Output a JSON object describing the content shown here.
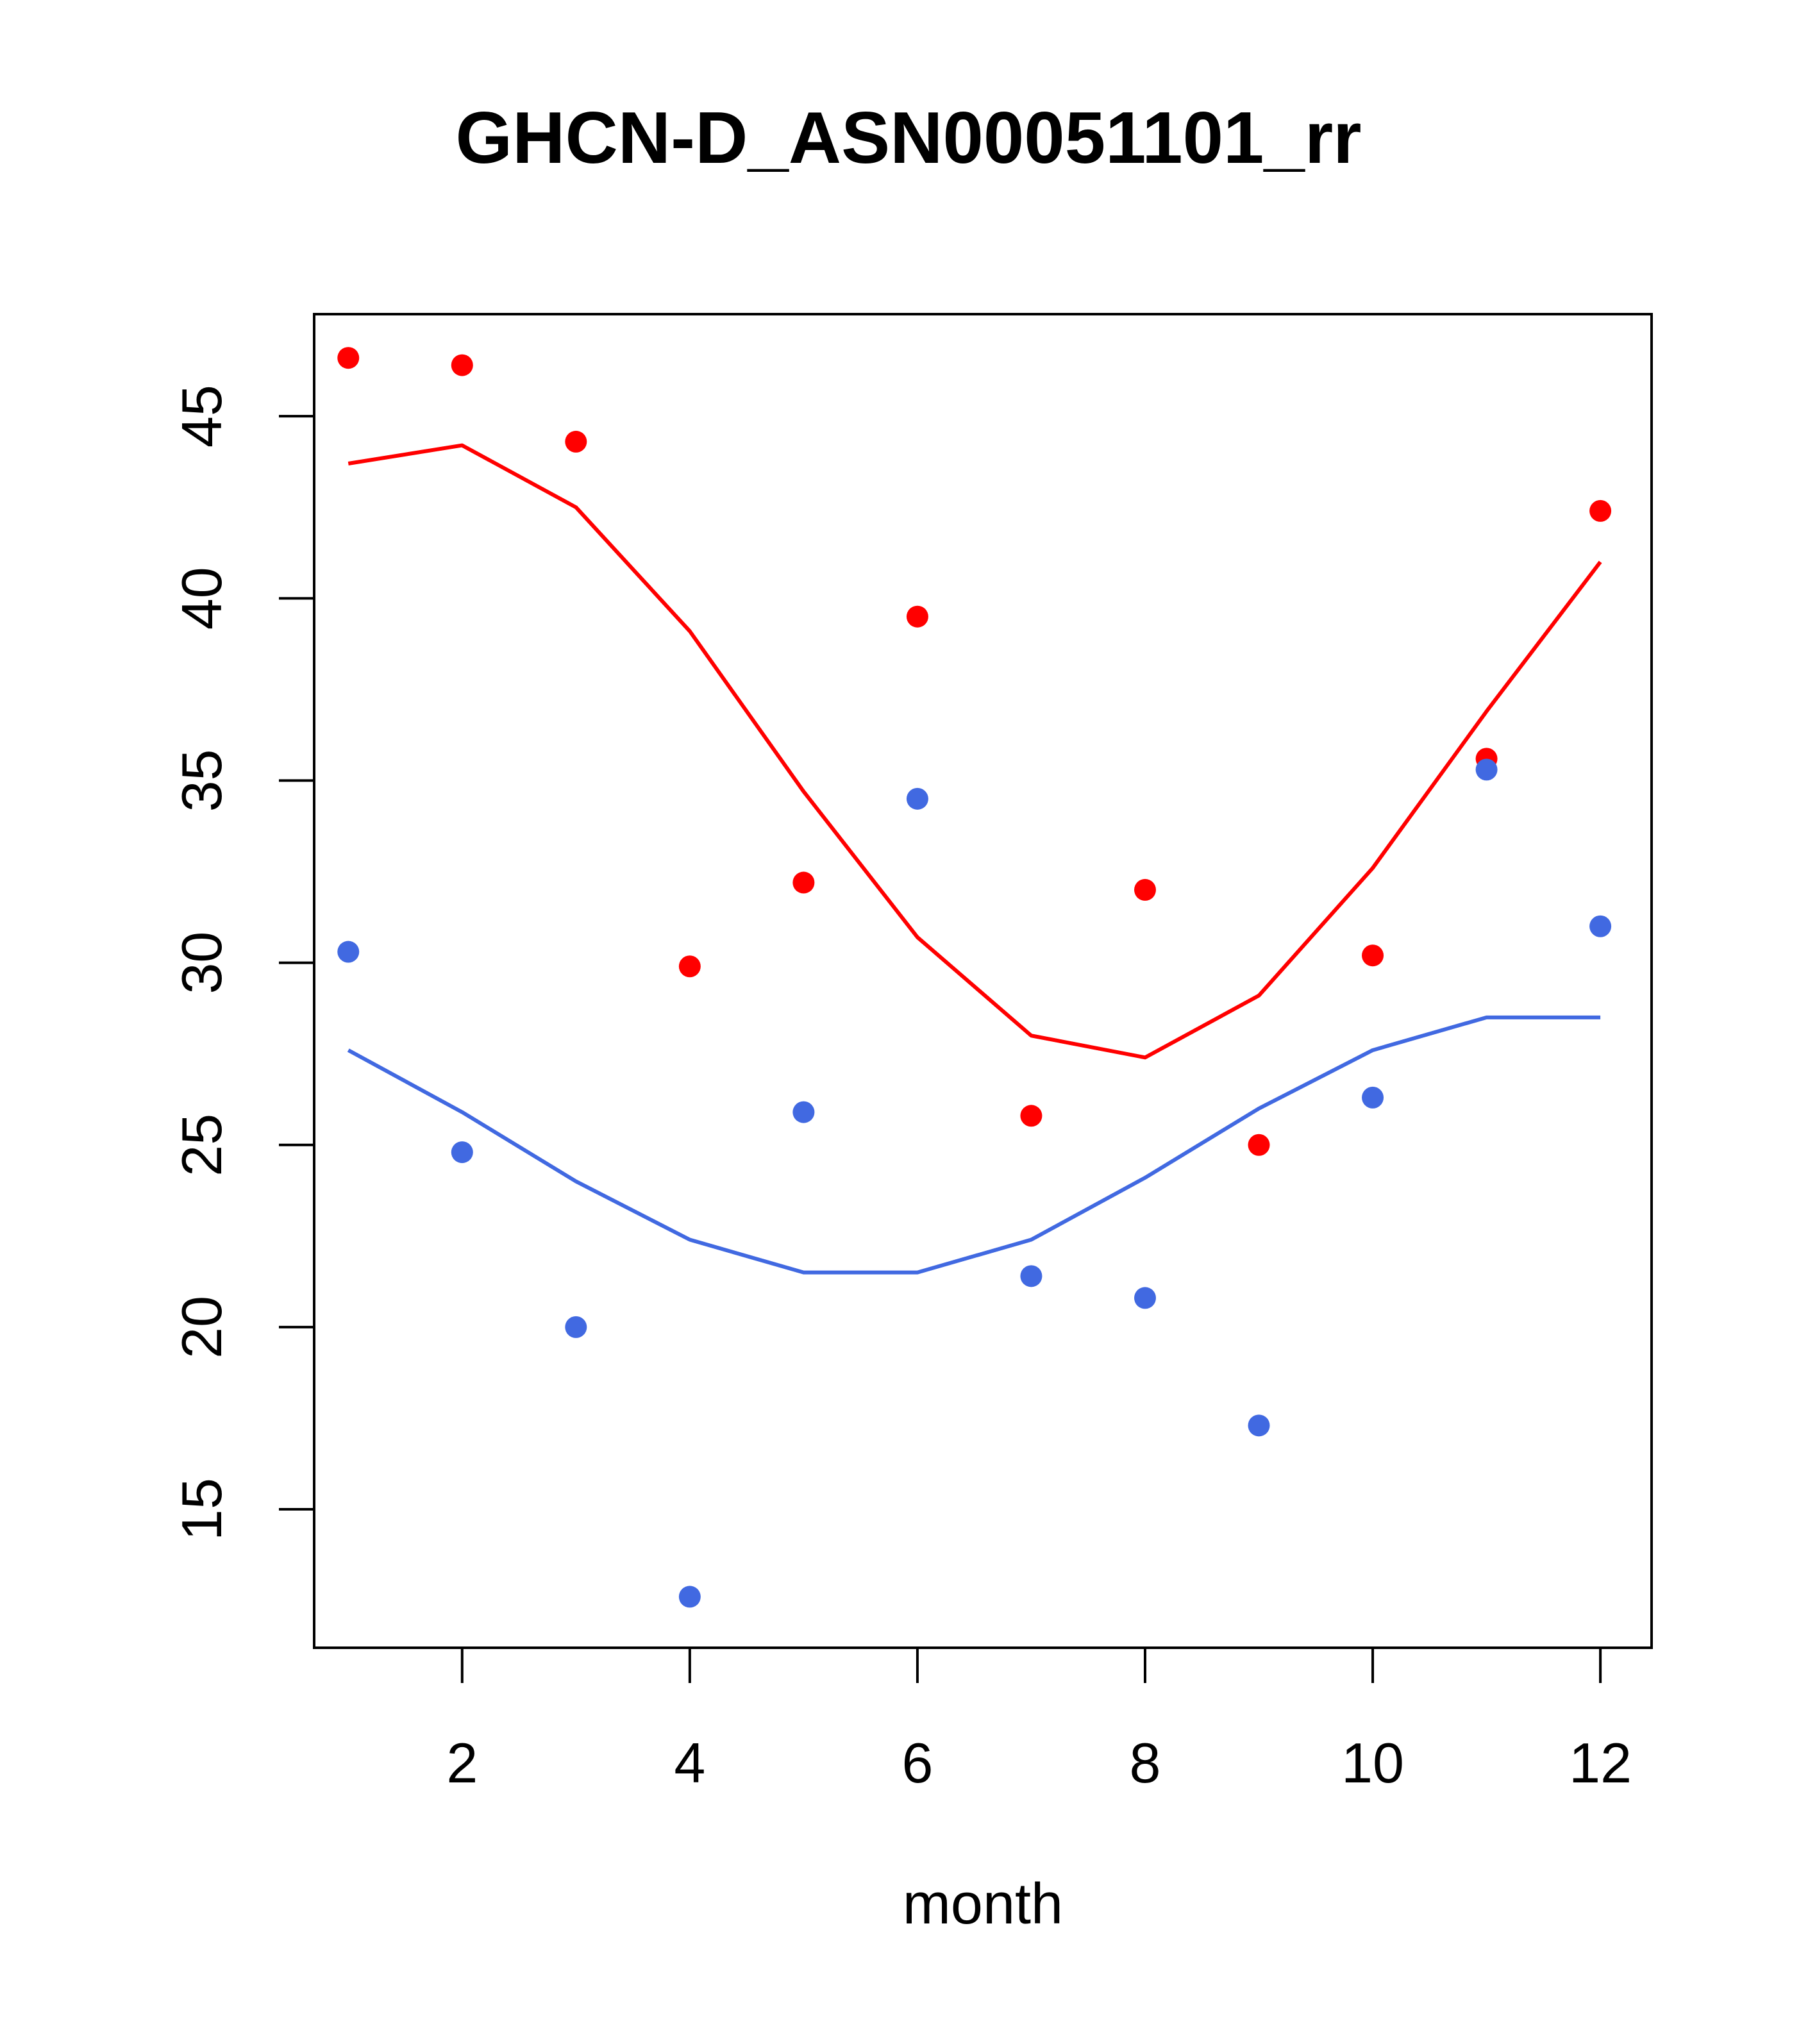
{
  "chart_data": {
    "type": "scatter",
    "title": "GHCN-D_ASN00051101_rr",
    "xlabel": "month",
    "ylabel": "",
    "xlim": [
      0.7,
      12.45
    ],
    "ylim": [
      11.2,
      47.8
    ],
    "x_ticks": [
      2,
      4,
      6,
      8,
      10,
      12
    ],
    "x_tick_labels": [
      "2",
      "4",
      "6",
      "8",
      "10",
      "12"
    ],
    "y_ticks": [
      15,
      20,
      25,
      30,
      35,
      40,
      45
    ],
    "y_tick_labels": [
      "15",
      "20",
      "25",
      "30",
      "35",
      "40",
      "45"
    ],
    "grid": false,
    "legend": "none",
    "x": [
      1,
      2,
      3,
      4,
      5,
      6,
      7,
      8,
      9,
      10,
      11,
      12
    ],
    "series": [
      {
        "kind": "points",
        "color": "#ff0000",
        "values": [
          46.6,
          46.4,
          44.3,
          29.9,
          32.2,
          39.5,
          25.8,
          32.0,
          25.0,
          30.2,
          35.6,
          42.4
        ]
      },
      {
        "kind": "points",
        "color": "#4169e1",
        "values": [
          30.3,
          24.8,
          20.0,
          12.6,
          25.9,
          34.5,
          21.4,
          20.8,
          17.3,
          26.3,
          35.3,
          31.0
        ]
      },
      {
        "kind": "line",
        "color": "#ff0000",
        "values": [
          43.7,
          44.2,
          42.5,
          39.1,
          34.7,
          30.7,
          28.0,
          27.4,
          29.1,
          32.6,
          36.9,
          41.0
        ]
      },
      {
        "kind": "line",
        "color": "#4169e1",
        "values": [
          27.6,
          25.9,
          24.0,
          22.4,
          21.5,
          21.5,
          22.4,
          24.1,
          26.0,
          27.6,
          28.5,
          28.5
        ]
      }
    ]
  }
}
